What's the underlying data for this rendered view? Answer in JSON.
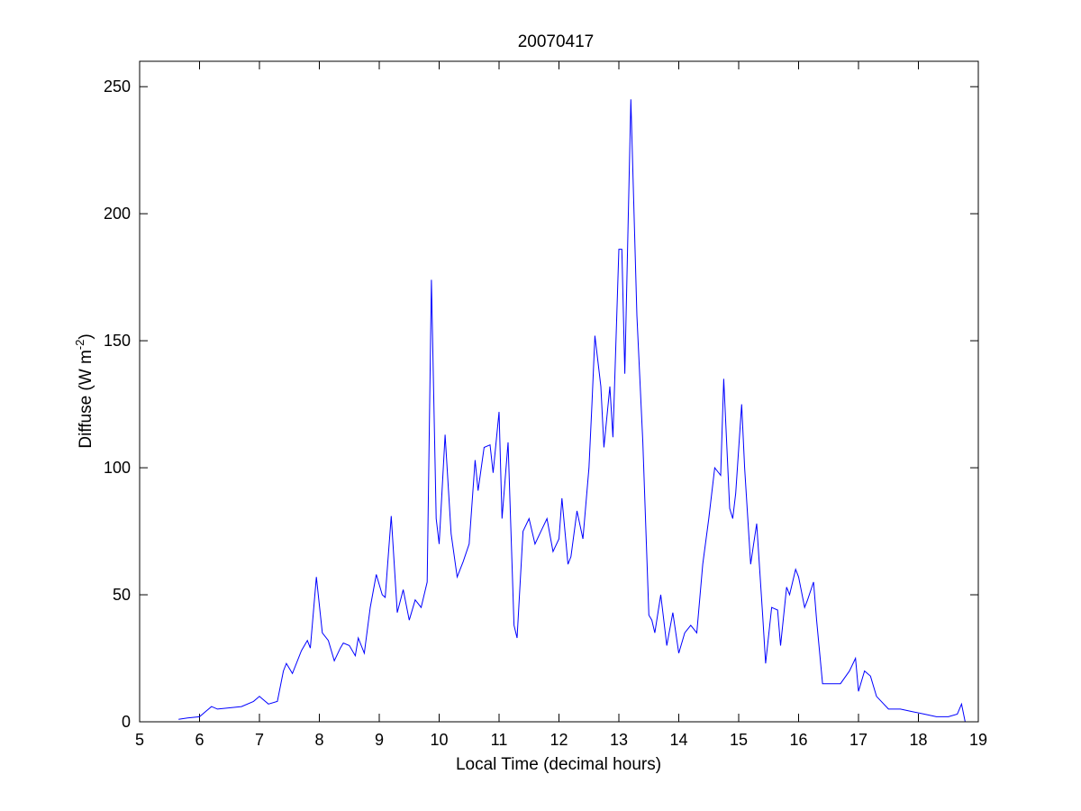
{
  "chart_data": {
    "type": "line",
    "title": "20070417",
    "xlabel": "Local Time (decimal hours)",
    "ylabel": "Diffuse (W m",
    "ylabel_sup": "-2",
    "ylabel_close": ")",
    "xlim": [
      5,
      19
    ],
    "ylim": [
      0,
      260
    ],
    "xticks": [
      5,
      6,
      7,
      8,
      9,
      10,
      11,
      12,
      13,
      14,
      15,
      16,
      17,
      18,
      19
    ],
    "yticks": [
      0,
      50,
      100,
      150,
      200,
      250
    ],
    "grid": false,
    "line_color": "#0000ff",
    "series": [
      {
        "x": [
          5.65,
          5.8,
          6.0,
          6.1,
          6.2,
          6.3,
          6.5,
          6.7,
          6.9,
          7.0,
          7.05,
          7.15,
          7.3,
          7.4,
          7.45,
          7.55,
          7.7,
          7.8,
          7.85,
          7.95,
          8.05,
          8.15,
          8.25,
          8.35,
          8.4,
          8.5,
          8.6,
          8.65,
          8.75,
          8.85,
          8.95,
          9.05,
          9.1,
          9.2,
          9.3,
          9.4,
          9.5,
          9.6,
          9.7,
          9.8,
          9.87,
          9.95,
          10.0,
          10.1,
          10.2,
          10.3,
          10.4,
          10.5,
          10.6,
          10.65,
          10.75,
          10.85,
          10.9,
          11.0,
          11.05,
          11.15,
          11.25,
          11.3,
          11.4,
          11.5,
          11.6,
          11.7,
          11.8,
          11.9,
          12.0,
          12.05,
          12.15,
          12.2,
          12.3,
          12.4,
          12.5,
          12.55,
          12.6,
          12.7,
          12.75,
          12.85,
          12.9,
          13.0,
          13.05,
          13.1,
          13.2,
          13.3,
          13.4,
          13.5,
          13.55,
          13.6,
          13.7,
          13.8,
          13.9,
          14.0,
          14.1,
          14.2,
          14.3,
          14.4,
          14.5,
          14.6,
          14.7,
          14.75,
          14.85,
          14.9,
          14.95,
          15.05,
          15.1,
          15.2,
          15.25,
          15.3,
          15.4,
          15.45,
          15.55,
          15.65,
          15.7,
          15.8,
          15.85,
          15.95,
          16.0,
          16.1,
          16.15,
          16.25,
          16.3,
          16.4,
          16.5,
          16.7,
          16.85,
          16.95,
          17.0,
          17.1,
          17.2,
          17.3,
          17.5,
          17.7,
          17.9,
          18.1,
          18.3,
          18.5,
          18.65,
          18.72,
          18.78
        ],
        "y": [
          1,
          1.5,
          2,
          4,
          6,
          5,
          5.5,
          6,
          8,
          10,
          9,
          7,
          8,
          20,
          23,
          19,
          28,
          32,
          29,
          57,
          35,
          32,
          24,
          29,
          31,
          30,
          26,
          33,
          27,
          45,
          58,
          50,
          49,
          81,
          43,
          52,
          40,
          48,
          45,
          55,
          174,
          80,
          70,
          113,
          74,
          57,
          63,
          70,
          103,
          91,
          108,
          109,
          98,
          122,
          80,
          110,
          38,
          33,
          75,
          80,
          70,
          75,
          80,
          67,
          72,
          88,
          62,
          65,
          83,
          72,
          100,
          125,
          152,
          132,
          108,
          132,
          112,
          186,
          186,
          137,
          245,
          160,
          110,
          42,
          40,
          35,
          50,
          30,
          43,
          27,
          35,
          38,
          35,
          62,
          80,
          100,
          97,
          135,
          84,
          80,
          90,
          125,
          100,
          62,
          70,
          78,
          42,
          23,
          45,
          44,
          30,
          53,
          50,
          60,
          57,
          45,
          48,
          55,
          40,
          15,
          15,
          15,
          20,
          25,
          12,
          20,
          18,
          10,
          5,
          5,
          4,
          3,
          2,
          2,
          3,
          7,
          0
        ]
      }
    ]
  }
}
